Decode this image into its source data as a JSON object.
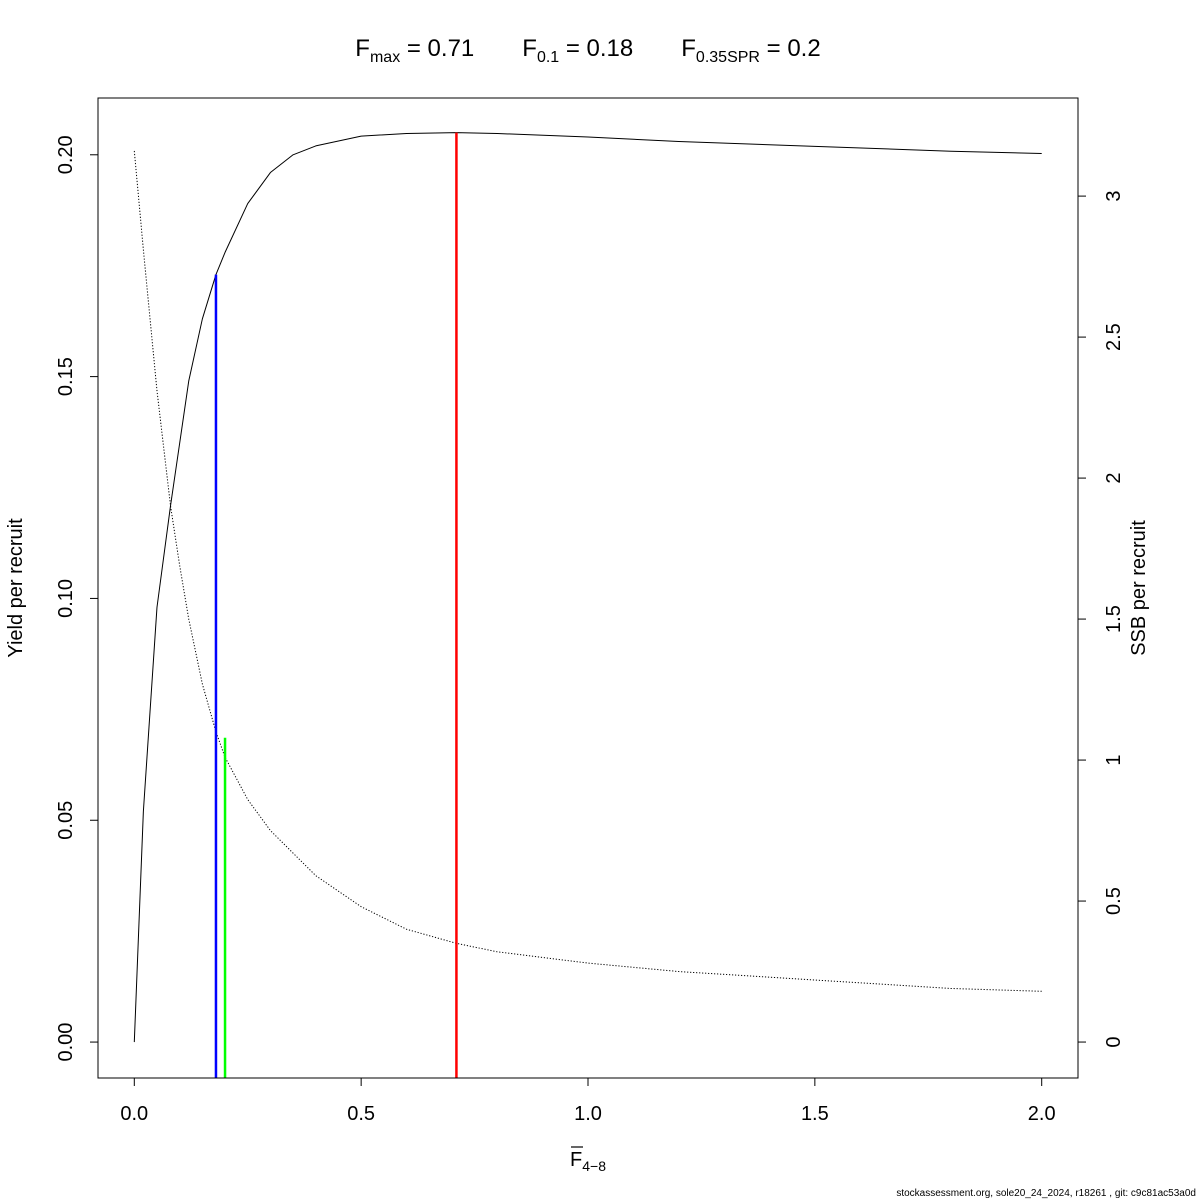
{
  "chart_data": {
    "type": "line",
    "title_parts": [
      {
        "main": "F",
        "sub": "max",
        "rest": " = 0.71"
      },
      {
        "main": "F",
        "sub": "0.1",
        "rest": " = 0.18"
      },
      {
        "main": "F",
        "sub": "0.35SPR",
        "rest": " = 0.2"
      }
    ],
    "xlabel": {
      "main": "F",
      "sub": "4−8",
      "overbar": true
    },
    "ylabel_left": "Yield per recruit",
    "ylabel_right": "SSB per recruit",
    "xlim": [
      -0.08,
      2.08
    ],
    "ylim_left": [
      -0.0081,
      0.2128
    ],
    "ylim_right": [
      -0.1275,
      3.3479
    ],
    "x_ticks": [
      0.0,
      0.5,
      1.0,
      1.5,
      2.0
    ],
    "x_tick_labels": [
      "0.0",
      "0.5",
      "1.0",
      "1.5",
      "2.0"
    ],
    "y_left_ticks": [
      0.0,
      0.05,
      0.1,
      0.15,
      0.2
    ],
    "y_left_tick_labels": [
      "0.00",
      "0.05",
      "0.10",
      "0.15",
      "0.20"
    ],
    "y_right_ticks": [
      0,
      0.5,
      1,
      1.5,
      2,
      2.5,
      3
    ],
    "y_right_tick_labels": [
      "0",
      "0.5",
      "1",
      "1.5",
      "2",
      "2.5",
      "3"
    ],
    "grid": false,
    "series": [
      {
        "axis": "left",
        "style": "solid",
        "x": [
          0.0,
          0.02,
          0.05,
          0.08,
          0.1,
          0.12,
          0.15,
          0.18,
          0.2,
          0.25,
          0.3,
          0.35,
          0.4,
          0.5,
          0.6,
          0.71,
          0.8,
          1.0,
          1.2,
          1.5,
          1.8,
          2.0
        ],
        "values": [
          0.0,
          0.052,
          0.098,
          0.121,
          0.135,
          0.149,
          0.163,
          0.173,
          0.178,
          0.189,
          0.196,
          0.2,
          0.202,
          0.2042,
          0.2048,
          0.205,
          0.2048,
          0.204,
          0.203,
          0.2019,
          0.2008,
          0.2003
        ]
      },
      {
        "axis": "right",
        "style": "dotted",
        "x": [
          0.0,
          0.02,
          0.05,
          0.08,
          0.1,
          0.12,
          0.15,
          0.18,
          0.2,
          0.25,
          0.3,
          0.4,
          0.5,
          0.6,
          0.71,
          0.8,
          1.0,
          1.2,
          1.5,
          1.8,
          2.0
        ],
        "values": [
          3.16,
          2.81,
          2.31,
          1.9,
          1.69,
          1.5,
          1.27,
          1.1,
          1.01,
          0.86,
          0.75,
          0.59,
          0.48,
          0.4,
          0.35,
          0.32,
          0.28,
          0.25,
          0.22,
          0.19,
          0.18
        ]
      }
    ],
    "reference_lines": [
      {
        "x": 0.71,
        "y_top": 0.205,
        "color": "#ff0000"
      },
      {
        "x": 0.18,
        "y_top": 0.173,
        "color": "#0000ff"
      },
      {
        "x": 0.2,
        "y_top": 0.0686,
        "color": "#00ff00"
      }
    ],
    "footer": "stockassessment.org, sole20_24_2024, r18261 , git: c9c81ac53a0d"
  }
}
